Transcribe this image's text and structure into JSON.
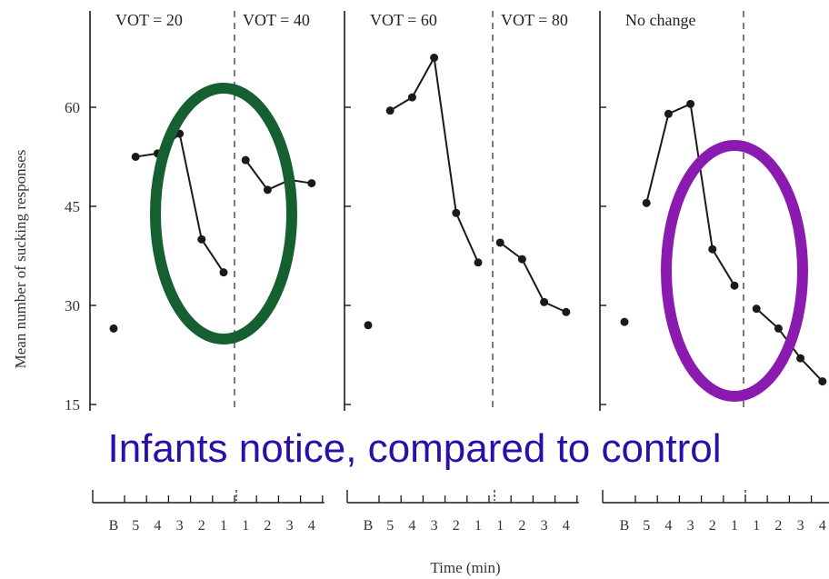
{
  "caption": "Infants notice, compared to control",
  "chart_data": {
    "type": "line",
    "ylabel": "Mean number of sucking responses",
    "xlabel": "Time (min)",
    "y_ticks": [
      15,
      30,
      45,
      60
    ],
    "x_tick_labels": [
      "B",
      "5",
      "4",
      "3",
      "2",
      "1",
      "1",
      "2",
      "3",
      "4"
    ],
    "panels": [
      {
        "pre_label": "VOT = 20",
        "post_label": "VOT = 40",
        "baseline": 26.5,
        "pre": [
          52.5,
          53,
          56,
          40,
          35
        ],
        "post": [
          52,
          47.5,
          49,
          48.5
        ]
      },
      {
        "pre_label": "VOT = 60",
        "post_label": "VOT = 80",
        "baseline": 27,
        "pre": [
          59.5,
          61.5,
          67.5,
          44,
          36.5
        ],
        "post": [
          39.5,
          37,
          30.5,
          29
        ]
      },
      {
        "pre_label": "No change",
        "post_label": "",
        "baseline": 27.5,
        "pre": [
          45.5,
          59,
          60.5,
          38.5,
          33
        ],
        "post": [
          29.5,
          26.5,
          22,
          18.5
        ]
      }
    ],
    "highlights": [
      {
        "panel": 0,
        "color": "#155f30"
      },
      {
        "panel": 2,
        "color": "#8b1bb0"
      }
    ]
  }
}
